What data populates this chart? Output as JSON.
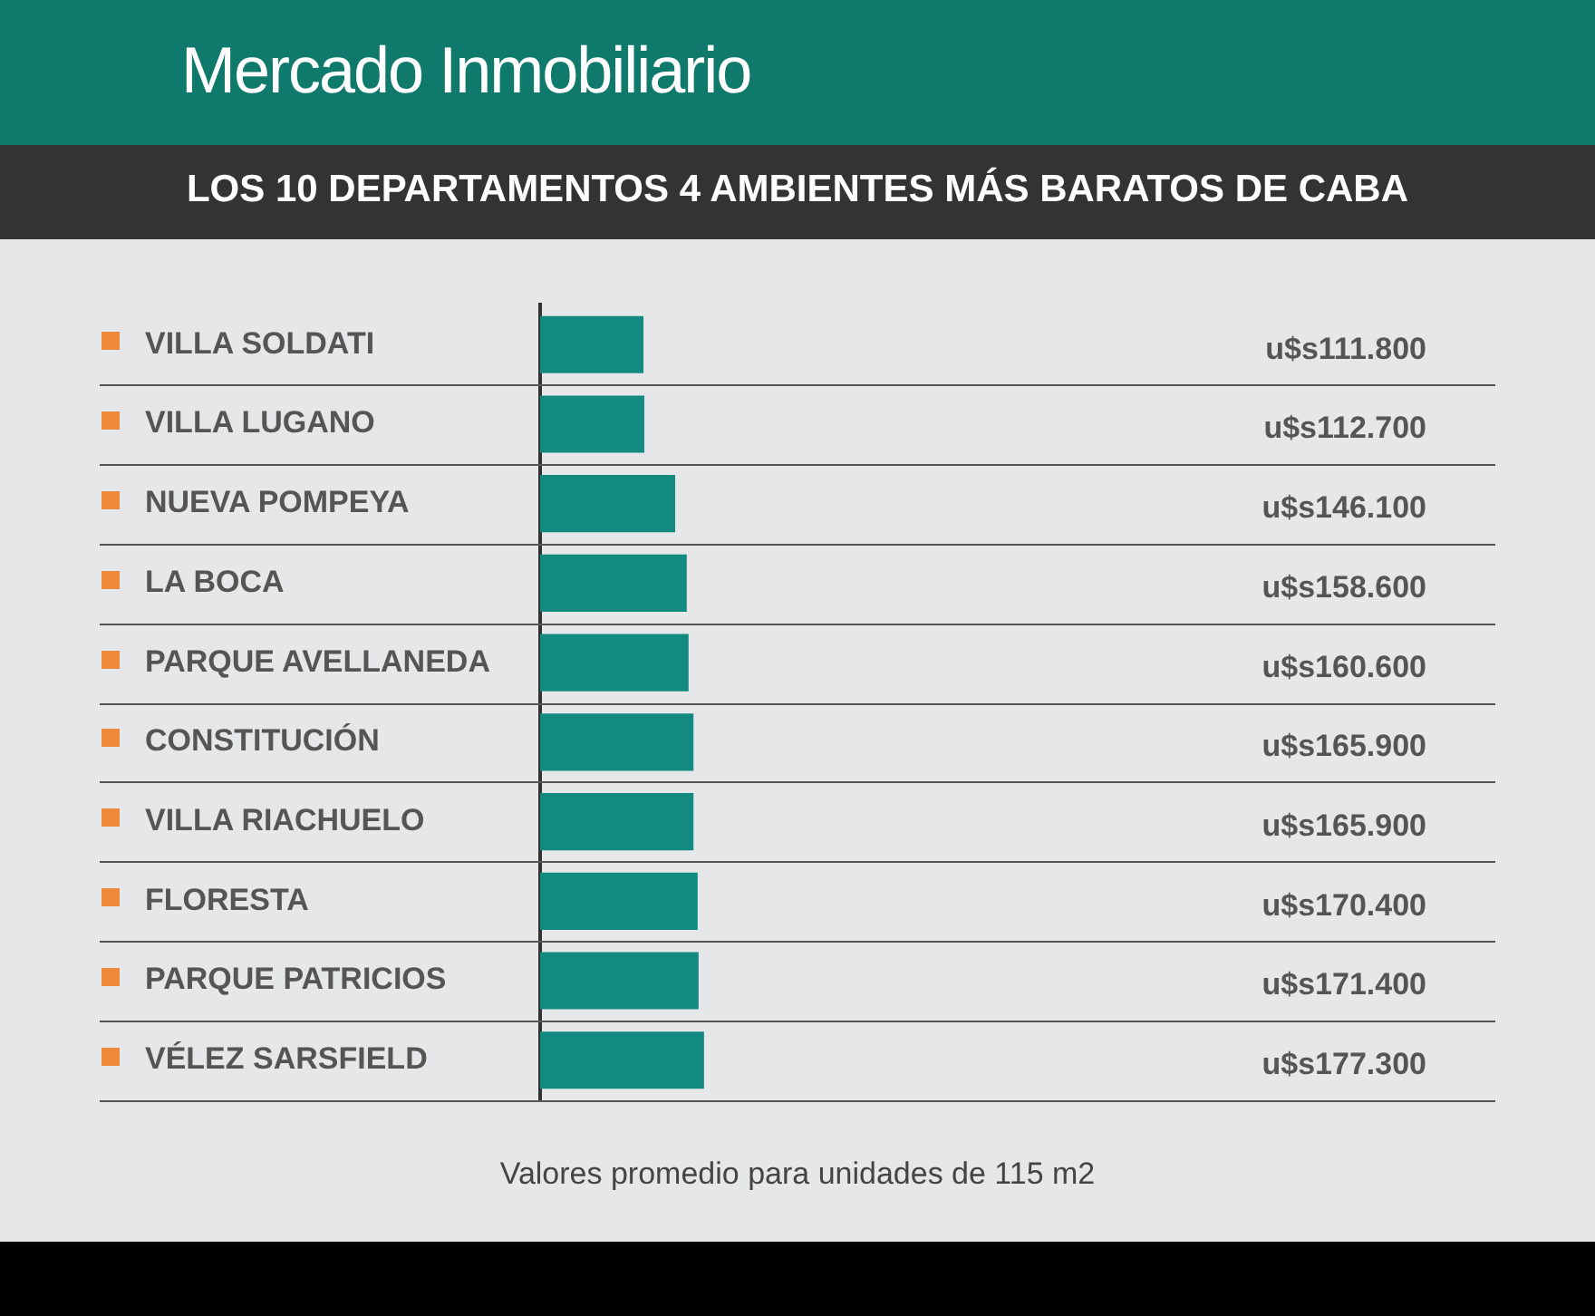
{
  "chart_data": {
    "type": "bar",
    "orientation": "horizontal",
    "title": "Mercado Inmobiliario",
    "subtitle": "LOS 10 DEPARTAMENTOS 4 AMBIENTES MÁS BARATOS DE CABA",
    "categories": [
      "VILLA SOLDATI",
      "VILLA LUGANO",
      "NUEVA POMPEYA",
      "LA BOCA",
      "PARQUE AVELLANEDA",
      "CONSTITUCIÓN",
      "VILLA RIACHUELO",
      "FLORESTA",
      "PARQUE PATRICIOS",
      "VÉLEZ SARSFIELD"
    ],
    "values": [
      111800,
      112700,
      146100,
      158600,
      160600,
      165900,
      165900,
      170400,
      171400,
      177300
    ],
    "value_labels": [
      "u$s111.800",
      "u$s112.700",
      "u$s146.100",
      "u$s158.600",
      "u$s160.600",
      "u$s165.900",
      "u$s165.900",
      "u$s170.400",
      "u$s171.400",
      "u$s177.300"
    ],
    "color": "#138a80",
    "grid": "y",
    "legend": false,
    "tick_labels": "y",
    "annotations": [
      "Valores promedio para unidades de 115 m2"
    ]
  }
}
